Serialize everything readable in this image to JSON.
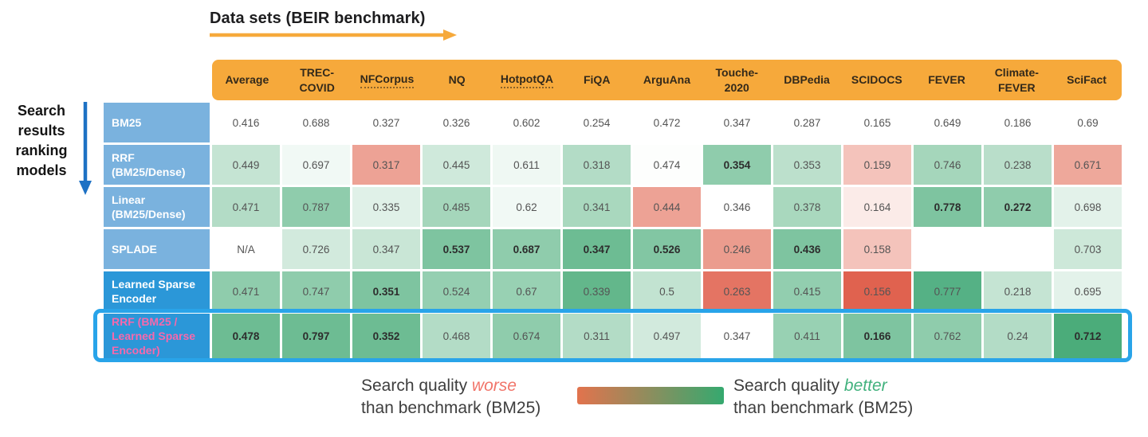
{
  "header": {
    "title": "Data sets (BEIR benchmark)"
  },
  "left_label": {
    "text": "Search\nresults\nranking\nmodels"
  },
  "colors": {
    "header_bg": "#F6A93B",
    "row_label_light": "#7AB2DE",
    "row_label_dark": "#2B97D8",
    "highlight_border": "#29A4E9",
    "highlight_row_text": "#F768AC",
    "legend_worse": "#F1756A",
    "legend_better": "#42B27E",
    "gradient_start": "#E2734D",
    "gradient_end": "#35A96F",
    "title_arrow": "#F6A93B",
    "left_arrow": "#1D71C4"
  },
  "legend": {
    "left": {
      "prefix": "Search quality ",
      "word": "worse",
      "line2": "than benchmark (BM25)"
    },
    "right": {
      "prefix": "Search quality ",
      "word": "better",
      "line2": "than benchmark (BM25)"
    }
  },
  "chart_data": {
    "type": "heatmap",
    "columns": [
      {
        "label": "Average"
      },
      {
        "label": "TREC-\nCOVID"
      },
      {
        "label": "NFCorpus",
        "underline": true
      },
      {
        "label": "NQ"
      },
      {
        "label": "HotpotQA",
        "underline": true
      },
      {
        "label": "FiQA"
      },
      {
        "label": "ArguAna"
      },
      {
        "label": "Touche-\n2020"
      },
      {
        "label": "DBPedia"
      },
      {
        "label": "SCIDOCS"
      },
      {
        "label": "FEVER"
      },
      {
        "label": "Climate-\nFEVER"
      },
      {
        "label": "SciFact"
      }
    ],
    "rows": [
      {
        "label": "BM25",
        "label_bg": "#7AB2DE",
        "label_color": "#FFFFFF",
        "cells": [
          {
            "value": "0.416",
            "bg": "#FFFFFF"
          },
          {
            "value": "0.688",
            "bg": "#FFFFFF"
          },
          {
            "value": "0.327",
            "bg": "#FFFFFF"
          },
          {
            "value": "0.326",
            "bg": "#FFFFFF"
          },
          {
            "value": "0.602",
            "bg": "#FFFFFF"
          },
          {
            "value": "0.254",
            "bg": "#FFFFFF"
          },
          {
            "value": "0.472",
            "bg": "#FFFFFF"
          },
          {
            "value": "0.347",
            "bg": "#FFFFFF"
          },
          {
            "value": "0.287",
            "bg": "#FFFFFF"
          },
          {
            "value": "0.165",
            "bg": "#FFFFFF"
          },
          {
            "value": "0.649",
            "bg": "#FFFFFF"
          },
          {
            "value": "0.186",
            "bg": "#FFFFFF"
          },
          {
            "value": "0.69",
            "bg": "#FFFFFF"
          }
        ]
      },
      {
        "label": "RRF\n(BM25/Dense)",
        "label_bg": "#7AB2DE",
        "label_color": "#FFFFFF",
        "cells": [
          {
            "value": "0.449",
            "bg": "#C5E4D3"
          },
          {
            "value": "0.697",
            "bg": "#F1F9F5"
          },
          {
            "value": "0.317",
            "bg": "#EDA295"
          },
          {
            "value": "0.445",
            "bg": "#CFE9DB"
          },
          {
            "value": "0.611",
            "bg": "#EFF8F3"
          },
          {
            "value": "0.318",
            "bg": "#B3DCC6"
          },
          {
            "value": "0.474",
            "bg": "#FDFEFD"
          },
          {
            "value": "0.354",
            "bg": "#8FCCAC",
            "bold": true
          },
          {
            "value": "0.353",
            "bg": "#BCE0CC"
          },
          {
            "value": "0.159",
            "bg": "#F4C3BB"
          },
          {
            "value": "0.746",
            "bg": "#A5D6BB"
          },
          {
            "value": "0.238",
            "bg": "#B9DECA"
          },
          {
            "value": "0.671",
            "bg": "#EEA89B"
          }
        ]
      },
      {
        "label": "Linear\n(BM25/Dense)",
        "label_bg": "#7AB2DE",
        "label_color": "#FFFFFF",
        "cells": [
          {
            "value": "0.471",
            "bg": "#B3DCC6"
          },
          {
            "value": "0.787",
            "bg": "#8FCCAC"
          },
          {
            "value": "0.335",
            "bg": "#E0F1E8"
          },
          {
            "value": "0.485",
            "bg": "#A5D6BB"
          },
          {
            "value": "0.62",
            "bg": "#F1F9F5"
          },
          {
            "value": "0.341",
            "bg": "#A9D8BE"
          },
          {
            "value": "0.444",
            "bg": "#EDA295"
          },
          {
            "value": "0.346",
            "bg": "#FFFFFF"
          },
          {
            "value": "0.378",
            "bg": "#A9D8BE"
          },
          {
            "value": "0.164",
            "bg": "#FBEBE8"
          },
          {
            "value": "0.778",
            "bg": "#7EC4A0",
            "bold": true
          },
          {
            "value": "0.272",
            "bg": "#8FCCAC",
            "bold": true
          },
          {
            "value": "0.698",
            "bg": "#E3F2EA"
          }
        ]
      },
      {
        "label": "SPLADE",
        "label_bg": "#7AB2DE",
        "label_color": "#FFFFFF",
        "cells": [
          {
            "value": "N/A",
            "bg": "#FFFFFF"
          },
          {
            "value": "0.726",
            "bg": "#D2EADD"
          },
          {
            "value": "0.347",
            "bg": "#C9E6D6"
          },
          {
            "value": "0.537",
            "bg": "#7EC4A0",
            "bold": true
          },
          {
            "value": "0.687",
            "bg": "#8FCCAC",
            "bold": true
          },
          {
            "value": "0.347",
            "bg": "#6DBC93",
            "bold": true
          },
          {
            "value": "0.526",
            "bg": "#82C6A3",
            "bold": true
          },
          {
            "value": "0.246",
            "bg": "#EB9C8E"
          },
          {
            "value": "0.436",
            "bg": "#7EC4A0",
            "bold": true
          },
          {
            "value": "0.158",
            "bg": "#F4C3BB"
          },
          {
            "value": "",
            "bg": "#FFFFFF"
          },
          {
            "value": "",
            "bg": "#FFFFFF"
          },
          {
            "value": "0.703",
            "bg": "#CDE8D9"
          }
        ]
      },
      {
        "label": "Learned Sparse\nEncoder",
        "label_bg": "#2B97D8",
        "label_color": "#FFFFFF",
        "cells": [
          {
            "value": "0.471",
            "bg": "#8FCCAC"
          },
          {
            "value": "0.747",
            "bg": "#8FCCAC"
          },
          {
            "value": "0.351",
            "bg": "#7EC4A0",
            "bold": true
          },
          {
            "value": "0.524",
            "bg": "#95CFB1"
          },
          {
            "value": "0.67",
            "bg": "#98D1B3"
          },
          {
            "value": "0.339",
            "bg": "#63B78B"
          },
          {
            "value": "0.5",
            "bg": "#C2E3D1"
          },
          {
            "value": "0.263",
            "bg": "#E47463"
          },
          {
            "value": "0.415",
            "bg": "#92CEAF"
          },
          {
            "value": "0.156",
            "bg": "#E0624F"
          },
          {
            "value": "0.777",
            "bg": "#55B185"
          },
          {
            "value": "0.218",
            "bg": "#C5E4D3"
          },
          {
            "value": "0.695",
            "bg": "#E3F2EA"
          }
        ]
      },
      {
        "label": "RRF (BM25 /\nLearned Sparse\nEncoder)",
        "label_bg": "#2B97D8",
        "label_color": "#F768AC",
        "cells": [
          {
            "value": "0.478",
            "bg": "#6DBC93",
            "bold": true
          },
          {
            "value": "0.797",
            "bg": "#6DBC93",
            "bold": true
          },
          {
            "value": "0.352",
            "bg": "#6DBC93",
            "bold": true
          },
          {
            "value": "0.468",
            "bg": "#B3DCC6"
          },
          {
            "value": "0.674",
            "bg": "#8FCCAC"
          },
          {
            "value": "0.311",
            "bg": "#B3DCC6"
          },
          {
            "value": "0.497",
            "bg": "#D2EADD"
          },
          {
            "value": "0.347",
            "bg": "#FFFFFF"
          },
          {
            "value": "0.411",
            "bg": "#98D1B3"
          },
          {
            "value": "0.166",
            "bg": "#7EC4A0",
            "bold": true
          },
          {
            "value": "0.762",
            "bg": "#8FCCAC"
          },
          {
            "value": "0.24",
            "bg": "#B3DCC6"
          },
          {
            "value": "0.712",
            "bg": "#4BAC7A",
            "bold": true
          }
        ]
      }
    ]
  }
}
